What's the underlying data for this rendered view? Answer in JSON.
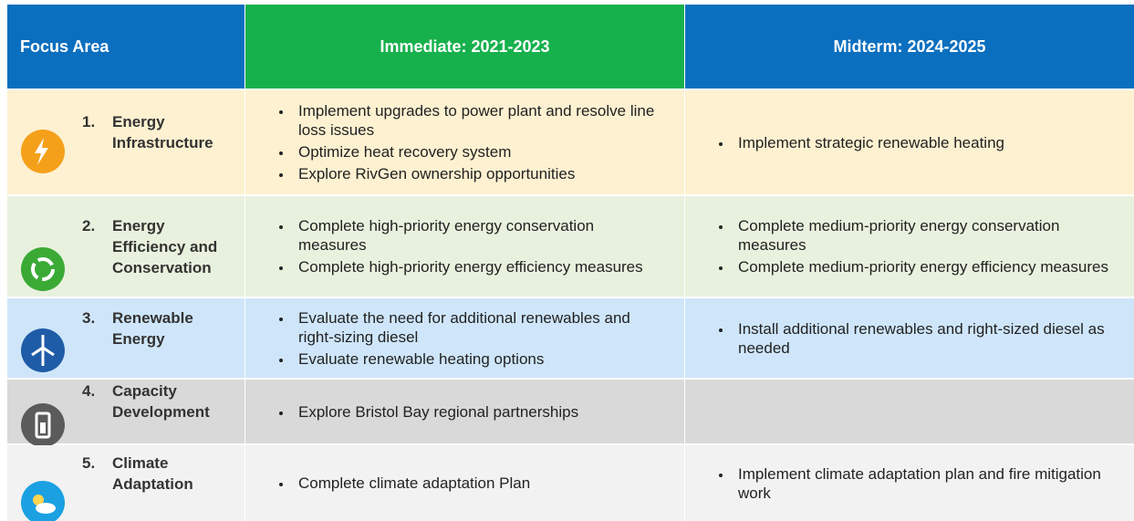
{
  "header": {
    "focus": "Focus Area",
    "immediate": "Immediate: 2021-2023",
    "midterm": "Midterm: 2024-2025"
  },
  "rows": [
    {
      "number": "1.",
      "area": "Energy Infrastructure",
      "immediate": [
        "Implement upgrades to power plant and resolve line loss issues",
        "Optimize heat recovery system",
        "Explore RivGen ownership opportunities"
      ],
      "midterm": [
        "Implement strategic renewable heating"
      ]
    },
    {
      "number": "2.",
      "area": "Energy Efficiency and Conservation",
      "immediate": [
        "Complete high-priority energy conservation measures",
        "Complete high-priority energy efficiency measures"
      ],
      "midterm": [
        "Complete medium-priority energy conservation measures",
        "Complete medium-priority energy efficiency measures"
      ]
    },
    {
      "number": "3.",
      "area": "Renewable Energy",
      "immediate": [
        "Evaluate the need for additional renewables and right-sizing diesel",
        "Evaluate renewable heating options"
      ],
      "midterm": [
        "Install additional renewables and right-sized diesel as needed"
      ]
    },
    {
      "number": "4.",
      "area": "Capacity Development",
      "immediate": [
        "Explore Bristol Bay regional partnerships"
      ],
      "midterm": []
    },
    {
      "number": "5.",
      "area": "Climate Adaptation",
      "immediate": [
        "Complete climate adaptation Plan"
      ],
      "midterm": [
        "Implement climate adaptation plan and fire mitigation work"
      ]
    }
  ]
}
